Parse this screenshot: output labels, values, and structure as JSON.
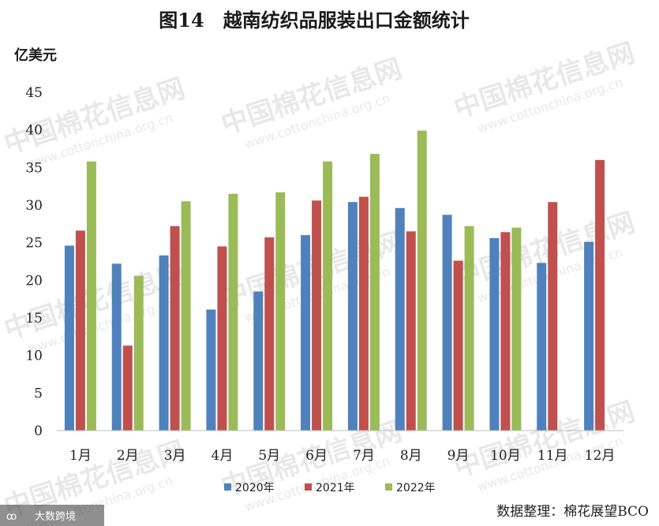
{
  "chart_data": {
    "type": "bar",
    "title": "图14　越南纺织品服装出口金额统计",
    "ylabel": "亿美元",
    "xlabel": "",
    "ylim": [
      0,
      45
    ],
    "yticks": [
      0,
      5,
      10,
      15,
      20,
      25,
      30,
      35,
      40,
      45
    ],
    "categories": [
      "1月",
      "2月",
      "3月",
      "4月",
      "5月",
      "6月",
      "7月",
      "8月",
      "9月",
      "10月",
      "11月",
      "12月"
    ],
    "series": [
      {
        "name": "2020年",
        "color": "#4f81bd",
        "values": [
          24.6,
          22.2,
          23.3,
          16.1,
          18.5,
          26.0,
          30.4,
          29.6,
          28.7,
          25.6,
          22.3,
          25.1
        ]
      },
      {
        "name": "2021年",
        "color": "#c0504d",
        "values": [
          26.6,
          11.3,
          27.2,
          24.5,
          25.7,
          30.6,
          31.1,
          26.5,
          22.6,
          26.4,
          30.4,
          36.0
        ]
      },
      {
        "name": "2022年",
        "color": "#9bbb59",
        "values": [
          35.8,
          20.6,
          30.5,
          31.5,
          31.7,
          35.8,
          36.8,
          39.9,
          27.2,
          27.0,
          null,
          null
        ]
      }
    ],
    "legend_position": "bottom",
    "grid": false
  },
  "source_note": "数据整理：棉花展望BCO",
  "corner_label": "大数跨境",
  "watermark": {
    "main": "中国棉花信息网",
    "url": "www.cottonchina.org.cn"
  }
}
